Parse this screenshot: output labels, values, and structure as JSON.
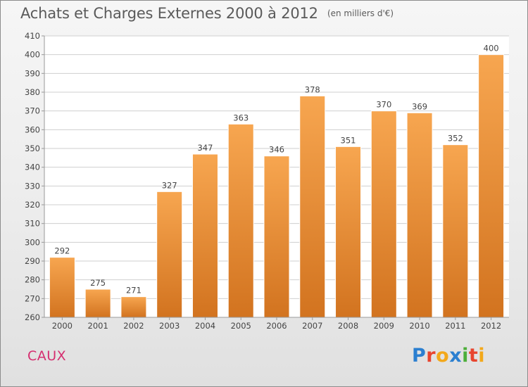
{
  "header": {
    "title": "Achats et Charges Externes 2000 à 2012",
    "subtitle": "(en milliers d'€)"
  },
  "place": "CAUX",
  "logo": {
    "text": "Proxiti",
    "letters": [
      {
        "char": "P",
        "color": "#2b7fd0"
      },
      {
        "char": "r",
        "color": "#e8442e"
      },
      {
        "char": "o",
        "color": "#f3a81a"
      },
      {
        "char": "x",
        "color": "#2b7fd0"
      },
      {
        "char": "i",
        "color": "#4caf3a"
      },
      {
        "char": "t",
        "color": "#e8442e"
      },
      {
        "char": "i",
        "color": "#f3a81a"
      }
    ]
  },
  "colors": {
    "bar_light": "#f7a650",
    "bar_dark": "#d2731f",
    "grid": "#cfcfcf",
    "axis_text": "#444444",
    "label_text": "#444444",
    "plot_bg": "#ffffff"
  },
  "chart_data": {
    "type": "bar",
    "title": "Achats et Charges Externes 2000 à 2012",
    "subtitle": "(en milliers d'€)",
    "xlabel": "",
    "ylabel": "",
    "categories": [
      "2000",
      "2001",
      "2002",
      "2003",
      "2004",
      "2005",
      "2006",
      "2007",
      "2008",
      "2009",
      "2010",
      "2011",
      "2012"
    ],
    "values": [
      292,
      275,
      271,
      327,
      347,
      363,
      346,
      378,
      351,
      370,
      369,
      352,
      400
    ],
    "ylim": [
      260,
      410
    ],
    "yticks": [
      260,
      270,
      280,
      290,
      300,
      310,
      320,
      330,
      340,
      350,
      360,
      370,
      380,
      390,
      400,
      410
    ],
    "grid": true,
    "data_labels": true,
    "legend": "none"
  }
}
